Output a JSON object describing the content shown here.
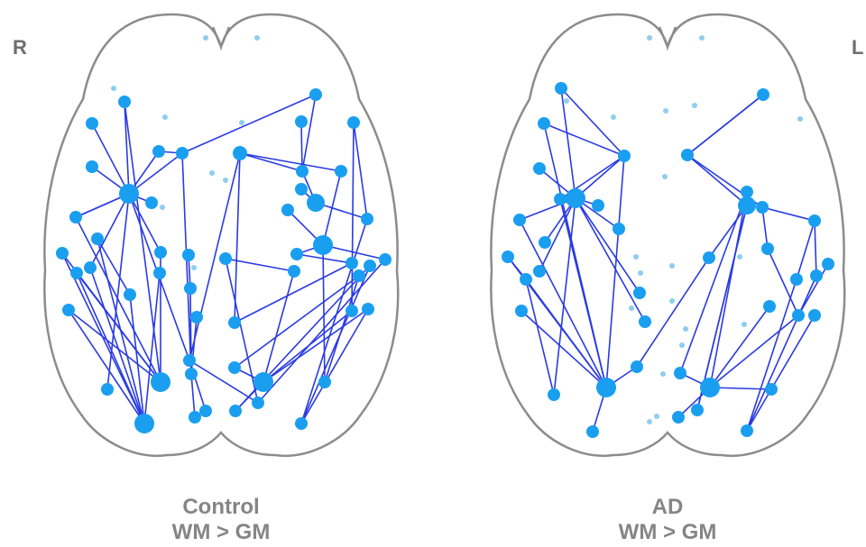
{
  "labels": {
    "hemisphere_right": "R",
    "hemisphere_left": "L"
  },
  "panels": [
    {
      "title": "Control",
      "subtitle": "WM > GM"
    },
    {
      "title": "AD",
      "subtitle": "WM > GM"
    }
  ]
}
